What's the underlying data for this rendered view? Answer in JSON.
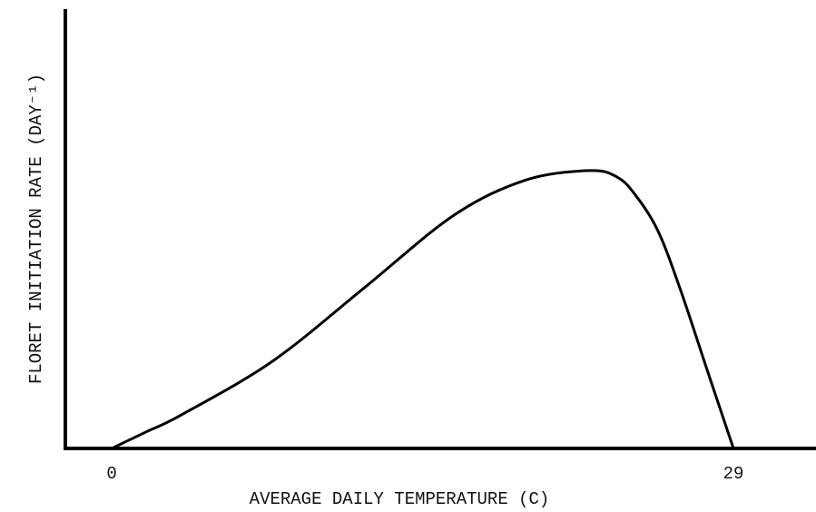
{
  "chart_data": {
    "type": "line",
    "xlabel": "AVERAGE DAILY TEMPERATURE (C)",
    "ylabel": "FLORET INITIATION RATE (DAY⁻¹)",
    "x": [
      0,
      1.57,
      3.26,
      7.49,
      11.73,
      15.96,
      19.35,
      22.31,
      23.58,
      24.43,
      25.49,
      26.54,
      27.81,
      29
    ],
    "values": [
      0,
      0.037,
      0.077,
      0.199,
      0.365,
      0.533,
      0.614,
      0.635,
      0.62,
      0.579,
      0.496,
      0.361,
      0.174,
      0
    ],
    "color": "#000000",
    "xlim": [
      -2.16,
      32.85
    ],
    "ylim": [
      0,
      1
    ],
    "xticks": [
      0,
      29
    ]
  }
}
